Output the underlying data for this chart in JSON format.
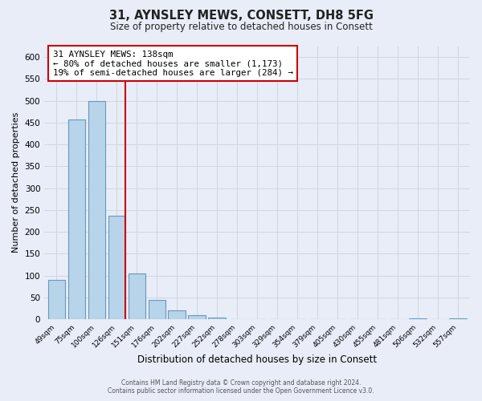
{
  "title": "31, AYNSLEY MEWS, CONSETT, DH8 5FG",
  "subtitle": "Size of property relative to detached houses in Consett",
  "xlabel": "Distribution of detached houses by size in Consett",
  "ylabel": "Number of detached properties",
  "bar_labels": [
    "49sqm",
    "75sqm",
    "100sqm",
    "126sqm",
    "151sqm",
    "176sqm",
    "202sqm",
    "227sqm",
    "252sqm",
    "278sqm",
    "303sqm",
    "329sqm",
    "354sqm",
    "379sqm",
    "405sqm",
    "430sqm",
    "455sqm",
    "481sqm",
    "506sqm",
    "532sqm",
    "557sqm"
  ],
  "bar_values": [
    90,
    457,
    500,
    237,
    105,
    45,
    20,
    10,
    3,
    0,
    0,
    0,
    0,
    0,
    0,
    0,
    0,
    0,
    2,
    0,
    2
  ],
  "bar_color": "#b8d4ea",
  "bar_edgecolor": "#6699bb",
  "property_line_color": "#cc0000",
  "ylim": [
    0,
    625
  ],
  "yticks": [
    0,
    50,
    100,
    150,
    200,
    250,
    300,
    350,
    400,
    450,
    500,
    550,
    600
  ],
  "annotation_title": "31 AYNSLEY MEWS: 138sqm",
  "annotation_line1": "← 80% of detached houses are smaller (1,173)",
  "annotation_line2": "19% of semi-detached houses are larger (284) →",
  "annotation_box_facecolor": "#ffffff",
  "annotation_box_edgecolor": "#cc0000",
  "footer_line1": "Contains HM Land Registry data © Crown copyright and database right 2024.",
  "footer_line2": "Contains public sector information licensed under the Open Government Licence v3.0.",
  "figure_facecolor": "#e8edf8",
  "plot_facecolor": "#e8edf8",
  "grid_color": "#d0d5e0"
}
